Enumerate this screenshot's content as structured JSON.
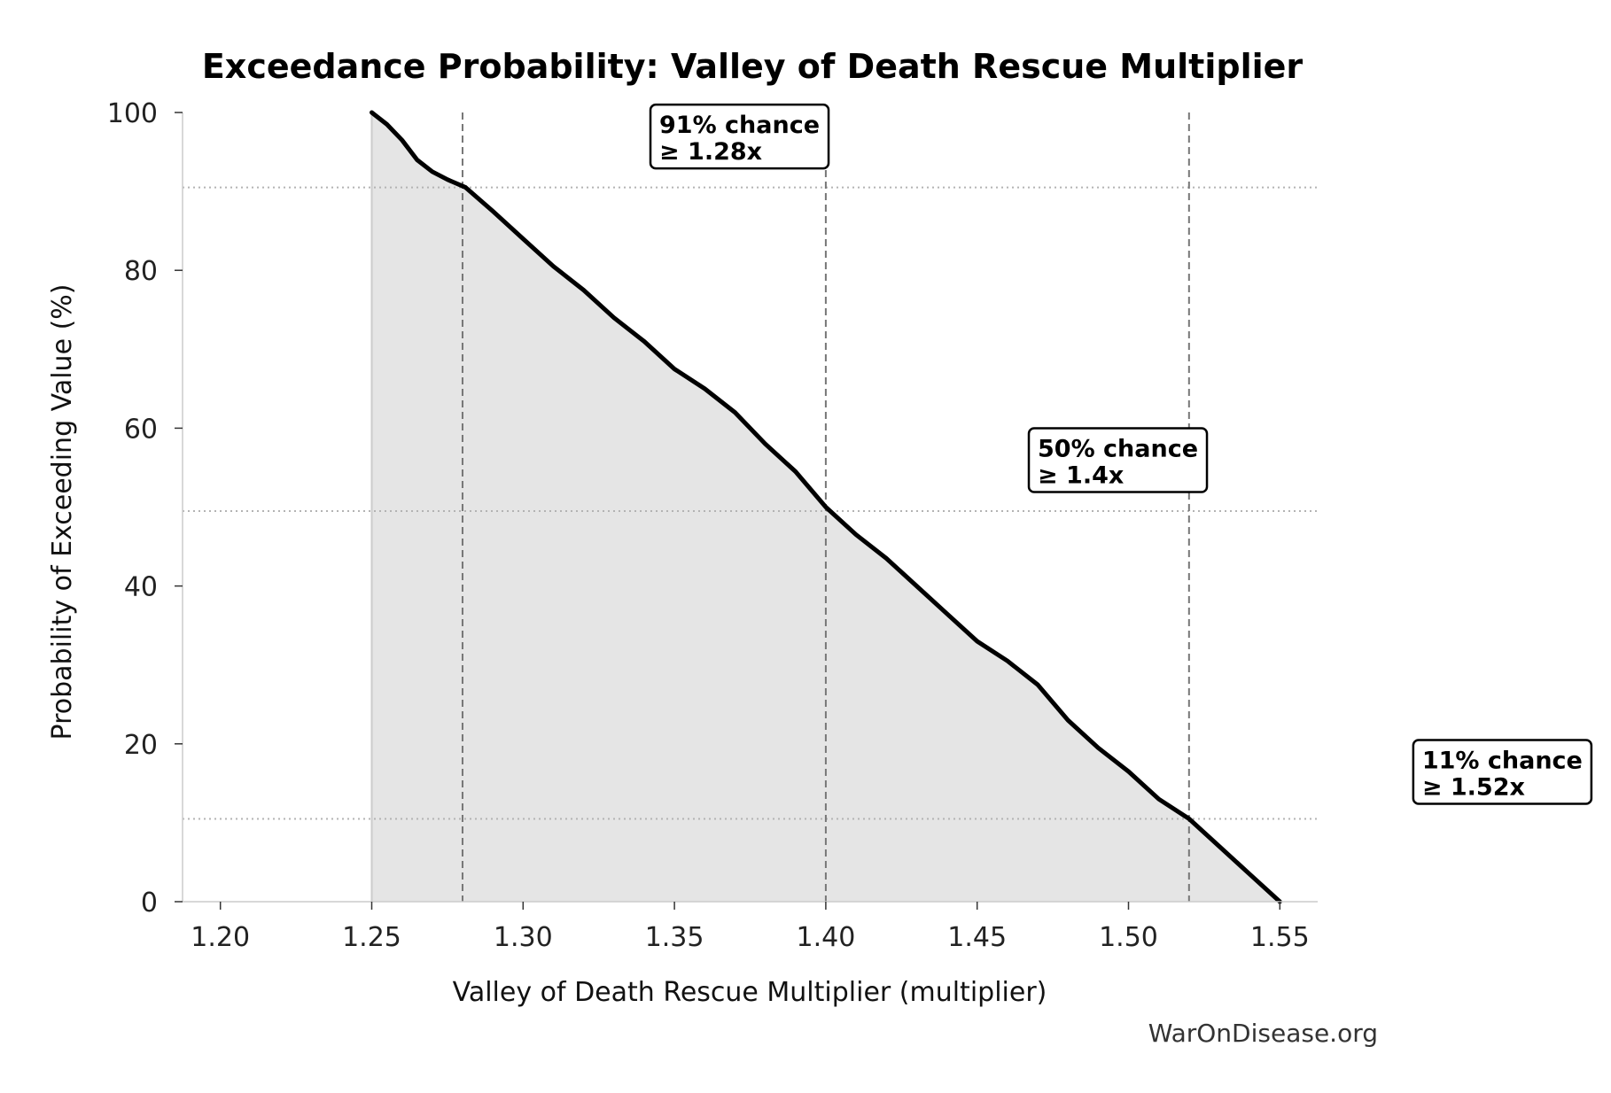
{
  "chart_data": {
    "type": "area",
    "title": "Exceedance Probability: Valley of Death Rescue Multiplier",
    "xlabel": "Valley of Death Rescue Multiplier (multiplier)",
    "ylabel": "Probability of Exceeding Value (%)",
    "xlim": [
      1.1875,
      1.5625
    ],
    "ylim": [
      0,
      100
    ],
    "xticks": [
      1.2,
      1.25,
      1.3,
      1.35,
      1.4,
      1.45,
      1.5,
      1.55
    ],
    "xtick_labels": [
      "1.20",
      "1.25",
      "1.30",
      "1.35",
      "1.40",
      "1.45",
      "1.50",
      "1.55"
    ],
    "yticks": [
      0,
      20,
      40,
      60,
      80,
      100
    ],
    "ytick_labels": [
      "0",
      "20",
      "40",
      "60",
      "80",
      "100"
    ],
    "grid": false,
    "series": [
      {
        "color": "#000000",
        "fill": "#e5e5e5",
        "x": [
          1.25,
          1.255,
          1.26,
          1.265,
          1.27,
          1.275,
          1.281,
          1.29,
          1.3,
          1.31,
          1.32,
          1.33,
          1.34,
          1.35,
          1.36,
          1.37,
          1.38,
          1.39,
          1.4,
          1.41,
          1.42,
          1.43,
          1.44,
          1.45,
          1.46,
          1.47,
          1.48,
          1.49,
          1.5,
          1.51,
          1.52,
          1.53,
          1.54,
          1.55
        ],
        "y": [
          100.0,
          98.5,
          96.5,
          94.0,
          92.5,
          91.5,
          90.5,
          87.5,
          84.0,
          80.5,
          77.5,
          74.0,
          71.0,
          67.5,
          65.0,
          62.0,
          58.0,
          54.5,
          50.0,
          46.5,
          43.5,
          40.0,
          36.5,
          33.0,
          30.5,
          27.5,
          23.0,
          19.5,
          16.5,
          13.0,
          10.5,
          7.0,
          3.5,
          0.0
        ]
      }
    ],
    "reference_lines": {
      "vertical": [
        1.28,
        1.4,
        1.52
      ],
      "horizontal": [
        90.5,
        49.5,
        10.5
      ]
    },
    "annotations": [
      {
        "line1": "91% chance",
        "line2": "≥ 1.28x",
        "x": 1.345,
        "y": 96.5
      },
      {
        "line1": "50% chance",
        "line2": "≥ 1.4x",
        "x": 1.47,
        "y": 55.5
      },
      {
        "line1": "11% chance",
        "line2": "≥ 1.52x",
        "x": 1.597,
        "y": 16.0
      }
    ]
  },
  "watermark": "WarOnDisease.org"
}
